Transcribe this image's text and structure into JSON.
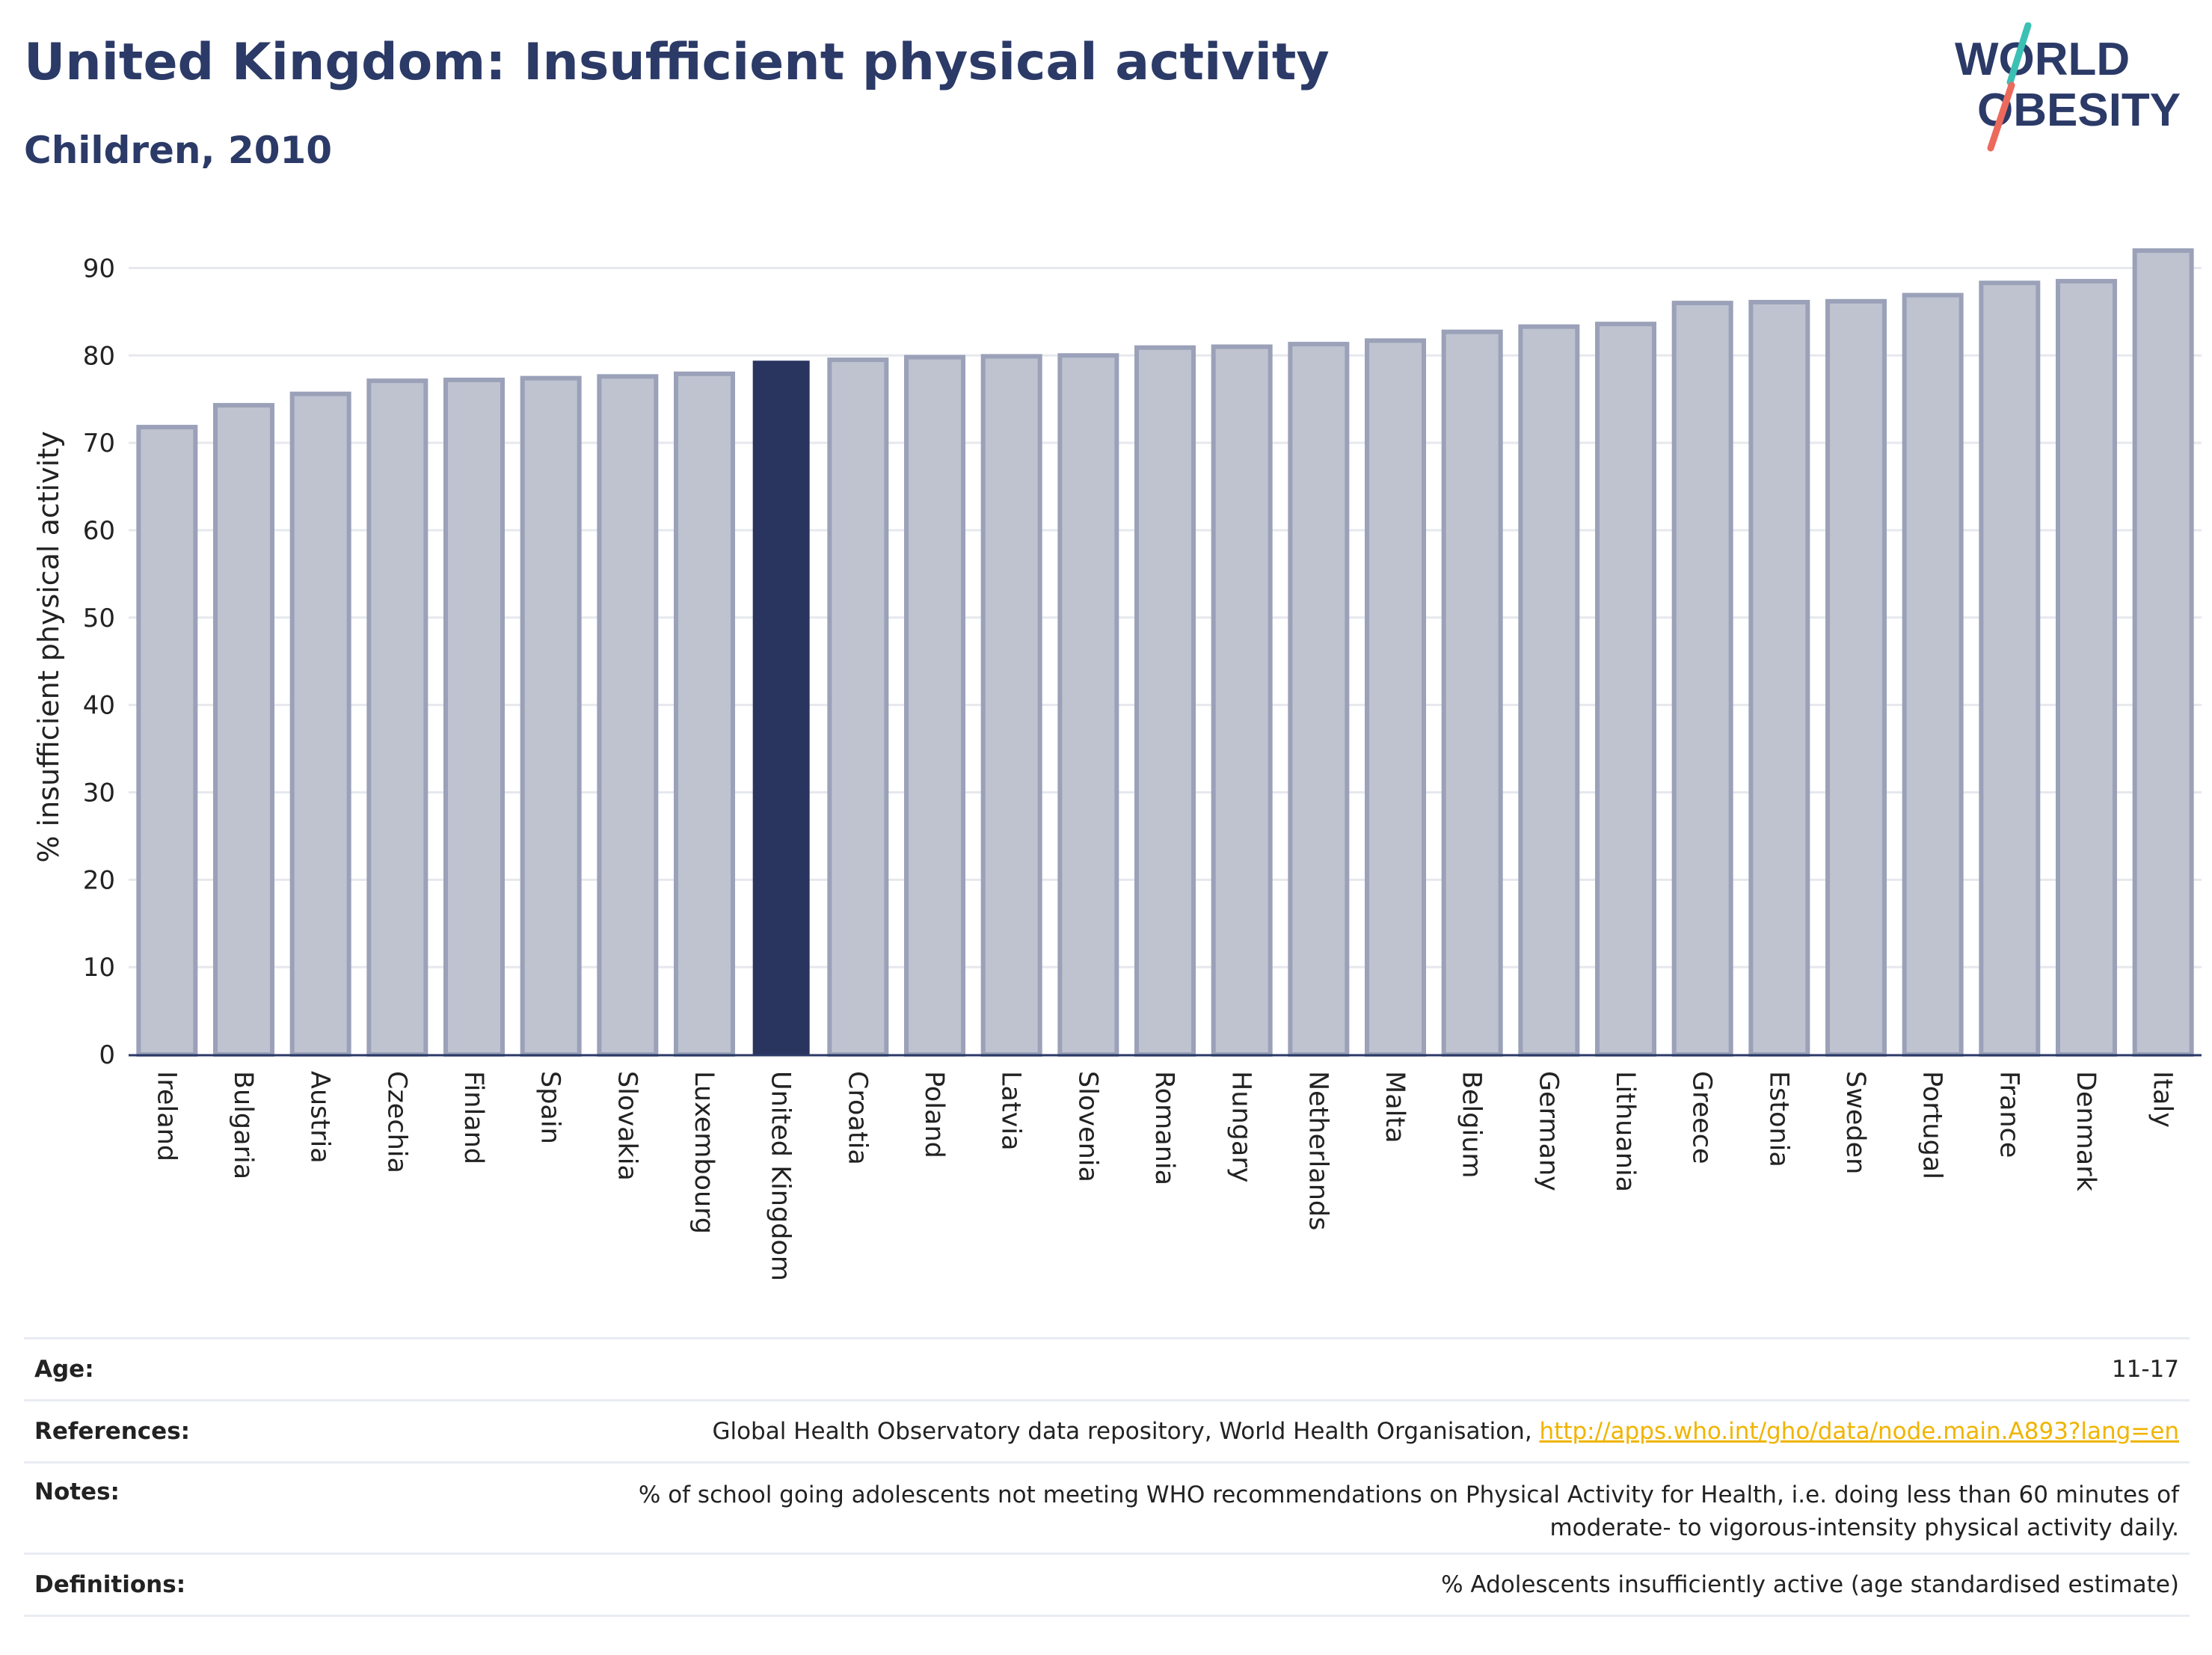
{
  "header": {
    "title": "United Kingdom: Insufficient physical activity",
    "subtitle": "Children, 2010"
  },
  "logo": {
    "line1": "WORLD",
    "line2": "OBESITY"
  },
  "chart_data": {
    "type": "bar",
    "title": "United Kingdom: Insufficient physical activity",
    "subtitle": "Children, 2010",
    "xlabel": "",
    "ylabel": "% insufficient physical activity",
    "ylim": [
      0,
      95
    ],
    "yticks": [
      0,
      10,
      20,
      30,
      40,
      50,
      60,
      70,
      80,
      90
    ],
    "grid": true,
    "highlight": "United Kingdom",
    "categories": [
      "Ireland",
      "Bulgaria",
      "Austria",
      "Czechia",
      "Finland",
      "Spain",
      "Slovakia",
      "Luxembourg",
      "United Kingdom",
      "Croatia",
      "Poland",
      "Latvia",
      "Slovenia",
      "Romania",
      "Hungary",
      "Netherlands",
      "Malta",
      "Belgium",
      "Germany",
      "Lithuania",
      "Greece",
      "Estonia",
      "Sweden",
      "Portugal",
      "France",
      "Denmark",
      "Italy"
    ],
    "values": [
      71.8,
      74.3,
      75.6,
      77.1,
      77.2,
      77.4,
      77.6,
      77.9,
      79.4,
      79.5,
      79.8,
      79.9,
      80.0,
      80.9,
      81.0,
      81.3,
      81.7,
      82.7,
      83.3,
      83.6,
      86.0,
      86.1,
      86.2,
      86.9,
      88.3,
      88.5,
      92.0
    ]
  },
  "colors": {
    "title": "#2b3a67",
    "bar": "#bfc3d0",
    "bar_border": "#9aa1b8",
    "highlight_bar": "#29355f",
    "link": "#f0b400",
    "logo_teal": "#3cc0b4",
    "logo_coral": "#ec6a5c"
  },
  "footer": {
    "age_label": "Age:",
    "age_value": "11-17",
    "references_label": "References:",
    "references_text": "Global Health Observatory data repository, World Health Organisation, ",
    "references_link": "http://apps.who.int/gho/data/node.main.A893?lang=en",
    "notes_label": "Notes:",
    "notes_line1": "% of school going adolescents not meeting WHO recommendations on Physical Activity for Health, i.e. doing less than 60 minutes of",
    "notes_line2": "moderate- to vigorous-intensity physical activity daily.",
    "definitions_label": "Definitions:",
    "definitions_value": "% Adolescents insufficiently active (age standardised estimate)"
  }
}
